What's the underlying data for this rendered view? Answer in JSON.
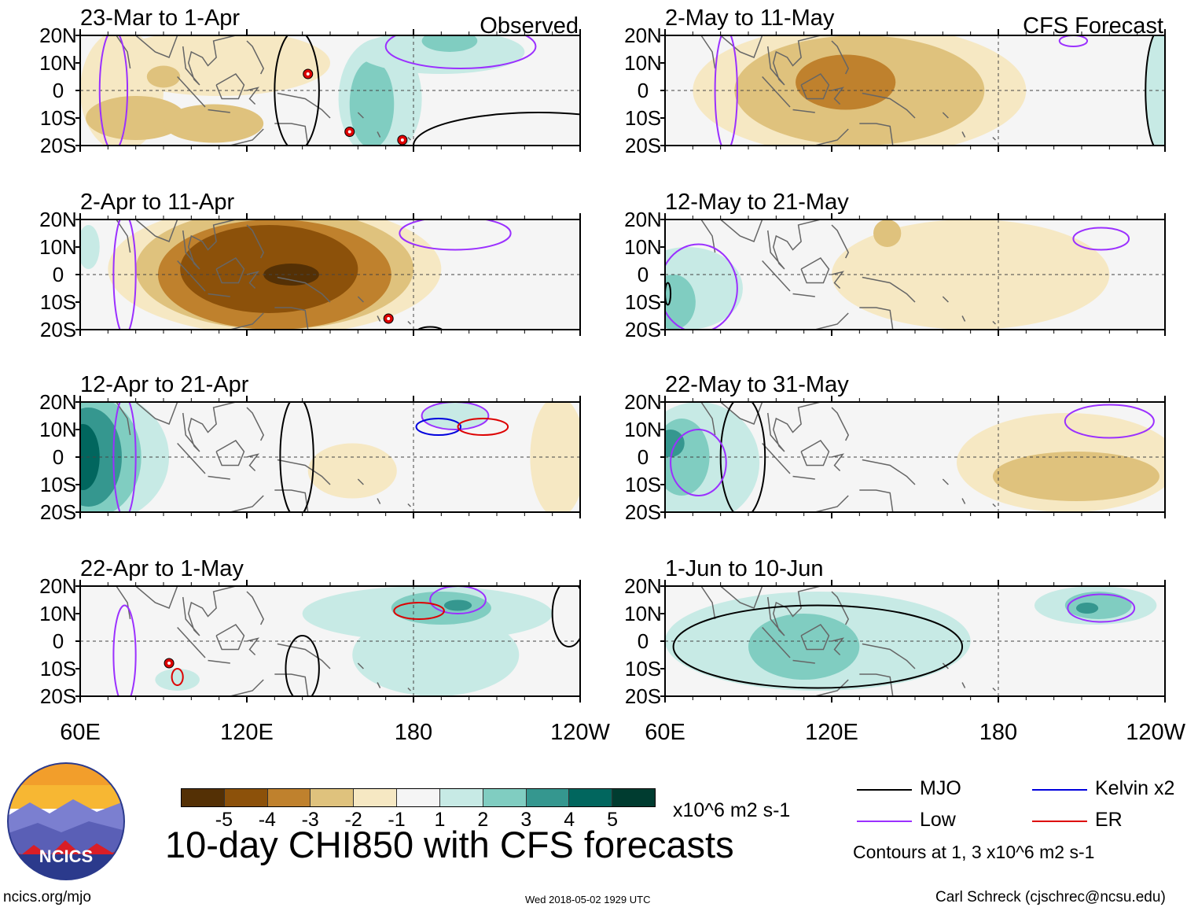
{
  "figure": {
    "title": "10-day CHI850 with CFS forecasts",
    "units": "x10^6 m2 s-1",
    "site": "ncics.org/mjo",
    "timestamp": "Wed 2018-05-02 1929 UTC",
    "credit": "Carl Schreck (cjschrec@ncsu.edu)",
    "logo_text": "NCICS"
  },
  "colors": {
    "scale": [
      "#543005",
      "#8c510a",
      "#bf812d",
      "#dfc27d",
      "#f6e8c3",
      "#f5f5f5",
      "#c7eae5",
      "#80cdc1",
      "#35978f",
      "#01665e",
      "#003c30"
    ],
    "mjo": "#000000",
    "low": "#9b30ff",
    "kelvin": "#0000dd",
    "er": "#dd0000",
    "coast": "#666666",
    "storm": "#dd0000"
  },
  "colorbar": {
    "ticks": [
      "-5",
      "-4",
      "-3",
      "-2",
      "-1",
      "1",
      "2",
      "3",
      "4",
      "5"
    ]
  },
  "legend": {
    "items": [
      {
        "label": "MJO",
        "color_key": "mjo"
      },
      {
        "label": "Kelvin x2",
        "color_key": "kelvin"
      },
      {
        "label": "Low",
        "color_key": "low"
      },
      {
        "label": "ER",
        "color_key": "er"
      }
    ],
    "contours_note": "Contours at 1, 3 x10^6 m2 s-1"
  },
  "chart_data": {
    "type": "heatmap",
    "variable": "CHI850 anomaly",
    "units": "x10^6 m2 s-1",
    "color_levels": [
      -5,
      -4,
      -3,
      -2,
      -1,
      1,
      2,
      3,
      4,
      5
    ],
    "contour_levels": [
      1,
      3
    ],
    "x_ticks": [
      "60E",
      "120E",
      "180",
      "120W"
    ],
    "x_range_deg_east": [
      60,
      240
    ],
    "y_ticks": [
      "20N",
      "10N",
      "0",
      "10S",
      "20S"
    ],
    "y_range_deg": [
      -20,
      20
    ],
    "column_labels": [
      "Observed",
      "CFS Forecast"
    ],
    "panels": [
      {
        "period": "23-Mar to 1-Apr",
        "column": 0,
        "row": 0,
        "tag": "Observed",
        "anomalies": [
          {
            "lon": 75,
            "lat": 0,
            "rlon": 15,
            "rlat": 22,
            "value": -1.5
          },
          {
            "lon": 80,
            "lat": -10,
            "rlon": 18,
            "rlat": 8,
            "value": -2
          },
          {
            "lon": 110,
            "lat": 10,
            "rlon": 40,
            "rlat": 12,
            "value": -1.5
          },
          {
            "lon": 90,
            "lat": 5,
            "rlon": 6,
            "rlat": 4,
            "value": -2
          },
          {
            "lon": 108,
            "lat": -12,
            "rlon": 18,
            "rlat": 7,
            "value": -2
          },
          {
            "lon": 168,
            "lat": -3,
            "rlon": 15,
            "rlat": 22,
            "value": 1.5
          },
          {
            "lon": 165,
            "lat": -5,
            "rlon": 8,
            "rlat": 16,
            "value": 2.5
          },
          {
            "lon": 190,
            "lat": 14,
            "rlon": 30,
            "rlat": 8,
            "value": 2
          },
          {
            "lon": 193,
            "lat": 18,
            "rlon": 10,
            "rlat": 4,
            "value": 3
          }
        ],
        "contours": [
          {
            "kind": "mjo",
            "lon": 138,
            "lat": 0,
            "rlon": 8,
            "rlat": 22
          },
          {
            "kind": "mjo",
            "lon": 225,
            "lat": -20,
            "rlon": 45,
            "rlat": 12
          },
          {
            "kind": "low",
            "lon": 197,
            "lat": 16,
            "rlon": 27,
            "rlat": 8
          },
          {
            "kind": "low",
            "lon": 72,
            "lat": 0,
            "rlon": 5,
            "rlat": 22
          }
        ],
        "storms": [
          {
            "lon": 142,
            "lat": 6
          },
          {
            "lon": 157,
            "lat": -15
          },
          {
            "lon": 176,
            "lat": -18
          }
        ]
      },
      {
        "period": "2-Apr to 11-Apr",
        "column": 0,
        "row": 1,
        "anomalies": [
          {
            "lon": 130,
            "lat": 2,
            "rlon": 60,
            "rlat": 24,
            "value": -1.5
          },
          {
            "lon": 130,
            "lat": 2,
            "rlon": 50,
            "rlat": 22,
            "value": -2.5
          },
          {
            "lon": 130,
            "lat": 0,
            "rlon": 42,
            "rlat": 20,
            "value": -3.5
          },
          {
            "lon": 128,
            "lat": 2,
            "rlon": 32,
            "rlat": 16,
            "value": -4.5
          },
          {
            "lon": 136,
            "lat": 0,
            "rlon": 10,
            "rlat": 4,
            "value": -5.5
          },
          {
            "lon": 63,
            "lat": 10,
            "rlon": 4,
            "rlat": 8,
            "value": 1.5
          }
        ],
        "contours": [
          {
            "kind": "low",
            "lon": 195,
            "lat": 15,
            "rlon": 20,
            "rlat": 6
          },
          {
            "kind": "low",
            "lon": 76,
            "lat": 0,
            "rlon": 4,
            "rlat": 22
          },
          {
            "kind": "mjo",
            "lon": 186,
            "lat": -21,
            "rlon": 5,
            "rlat": 2
          }
        ],
        "storms": [
          {
            "lon": 171,
            "lat": -16
          }
        ]
      },
      {
        "period": "12-Apr to 21-Apr",
        "column": 0,
        "row": 2,
        "anomalies": [
          {
            "lon": 66,
            "lat": 0,
            "rlon": 26,
            "rlat": 24,
            "value": 1.5
          },
          {
            "lon": 64,
            "lat": 0,
            "rlon": 18,
            "rlat": 22,
            "value": 2.5
          },
          {
            "lon": 63,
            "lat": 0,
            "rlon": 12,
            "rlat": 18,
            "value": 3.5
          },
          {
            "lon": 61,
            "lat": 0,
            "rlon": 6,
            "rlat": 12,
            "value": 4.5
          },
          {
            "lon": 158,
            "lat": -5,
            "rlon": 16,
            "rlat": 10,
            "value": -1.5
          },
          {
            "lon": 232,
            "lat": 0,
            "rlon": 10,
            "rlat": 22,
            "value": -1.5
          },
          {
            "lon": 195,
            "lat": 15,
            "rlon": 12,
            "rlat": 5,
            "value": 1.5
          }
        ],
        "contours": [
          {
            "kind": "mjo",
            "lon": 138,
            "lat": 0,
            "rlon": 6,
            "rlat": 22
          },
          {
            "kind": "low",
            "lon": 76,
            "lat": 0,
            "rlon": 4,
            "rlat": 22
          },
          {
            "kind": "low",
            "lon": 195,
            "lat": 15,
            "rlon": 12,
            "rlat": 5
          },
          {
            "kind": "kelvin",
            "lon": 189,
            "lat": 11,
            "rlon": 8,
            "rlat": 3
          },
          {
            "kind": "er",
            "lon": 205,
            "lat": 11,
            "rlon": 9,
            "rlat": 3
          }
        ],
        "storms": []
      },
      {
        "period": "22-Apr to 1-May",
        "column": 0,
        "row": 3,
        "anomalies": [
          {
            "lon": 185,
            "lat": 10,
            "rlon": 45,
            "rlat": 10,
            "value": 1.5
          },
          {
            "lon": 188,
            "lat": -5,
            "rlon": 30,
            "rlat": 15,
            "value": 1.5
          },
          {
            "lon": 190,
            "lat": 12,
            "rlon": 18,
            "rlat": 6,
            "value": 2.5
          },
          {
            "lon": 196,
            "lat": 13,
            "rlon": 5,
            "rlat": 2,
            "value": 3.5
          },
          {
            "lon": 95,
            "lat": -14,
            "rlon": 8,
            "rlat": 4,
            "value": 1.5
          }
        ],
        "contours": [
          {
            "kind": "mjo",
            "lon": 140,
            "lat": -10,
            "rlon": 6,
            "rlat": 12
          },
          {
            "kind": "mjo",
            "lon": 236,
            "lat": 10,
            "rlon": 6,
            "rlat": 12
          },
          {
            "kind": "low",
            "lon": 76,
            "lat": -5,
            "rlon": 4,
            "rlat": 18
          },
          {
            "kind": "low",
            "lon": 196,
            "lat": 15,
            "rlon": 10,
            "rlat": 5
          },
          {
            "kind": "er",
            "lon": 182,
            "lat": 11,
            "rlon": 9,
            "rlat": 3
          },
          {
            "kind": "er",
            "lon": 95,
            "lat": -13,
            "rlon": 2,
            "rlat": 3
          }
        ],
        "storms": [
          {
            "lon": 92,
            "lat": -8
          }
        ]
      },
      {
        "period": "2-May to 11-May",
        "column": 1,
        "row": 0,
        "tag": "CFS Forecast",
        "anomalies": [
          {
            "lon": 130,
            "lat": 0,
            "rlon": 60,
            "rlat": 24,
            "value": -1.5
          },
          {
            "lon": 130,
            "lat": 0,
            "rlon": 45,
            "rlat": 20,
            "value": -2.5
          },
          {
            "lon": 125,
            "lat": 3,
            "rlon": 18,
            "rlat": 10,
            "value": -3.5
          },
          {
            "lon": 238,
            "lat": 0,
            "rlon": 5,
            "rlat": 22,
            "value": 1.5
          }
        ],
        "contours": [
          {
            "kind": "low",
            "lon": 82,
            "lat": 0,
            "rlon": 4,
            "rlat": 22
          },
          {
            "kind": "low",
            "lon": 207,
            "lat": 18,
            "rlon": 5,
            "rlat": 2
          },
          {
            "kind": "mjo",
            "lon": 238,
            "lat": 0,
            "rlon": 5,
            "rlat": 22
          }
        ],
        "storms": []
      },
      {
        "period": "12-May to 21-May",
        "column": 1,
        "row": 1,
        "anomalies": [
          {
            "lon": 170,
            "lat": 0,
            "rlon": 50,
            "rlat": 20,
            "value": -1.5
          },
          {
            "lon": 140,
            "lat": 15,
            "rlon": 5,
            "rlat": 5,
            "value": -2.5
          },
          {
            "lon": 68,
            "lat": -5,
            "rlon": 20,
            "rlat": 15,
            "value": 1.5
          },
          {
            "lon": 63,
            "lat": -10,
            "rlon": 8,
            "rlat": 10,
            "value": 2.5
          }
        ],
        "contours": [
          {
            "kind": "low",
            "lon": 72,
            "lat": -5,
            "rlon": 14,
            "rlat": 16
          },
          {
            "kind": "low",
            "lon": 217,
            "lat": 13,
            "rlon": 10,
            "rlat": 4
          },
          {
            "kind": "mjo",
            "lon": 61,
            "lat": -7,
            "rlon": 1,
            "rlat": 4
          }
        ],
        "storms": []
      },
      {
        "period": "22-May to 31-May",
        "column": 1,
        "row": 2,
        "anomalies": [
          {
            "lon": 72,
            "lat": -2,
            "rlon": 22,
            "rlat": 22,
            "value": 1.5
          },
          {
            "lon": 66,
            "lat": 0,
            "rlon": 10,
            "rlat": 14,
            "value": 2.5
          },
          {
            "lon": 62,
            "lat": 5,
            "rlon": 5,
            "rlat": 5,
            "value": 3.5
          },
          {
            "lon": 205,
            "lat": -2,
            "rlon": 40,
            "rlat": 18,
            "value": -1.5
          },
          {
            "lon": 208,
            "lat": -7,
            "rlon": 30,
            "rlat": 9,
            "value": -2.5
          }
        ],
        "contours": [
          {
            "kind": "mjo",
            "lon": 88,
            "lat": 0,
            "rlon": 8,
            "rlat": 22
          },
          {
            "kind": "low",
            "lon": 72,
            "lat": -2,
            "rlon": 10,
            "rlat": 12
          },
          {
            "kind": "low",
            "lon": 220,
            "lat": 13,
            "rlon": 16,
            "rlat": 6
          }
        ],
        "storms": []
      },
      {
        "period": "1-Jun to 10-Jun",
        "column": 1,
        "row": 3,
        "anomalies": [
          {
            "lon": 115,
            "lat": 0,
            "rlon": 55,
            "rlat": 18,
            "value": 1.5
          },
          {
            "lon": 110,
            "lat": -2,
            "rlon": 20,
            "rlat": 12,
            "value": 2.5
          },
          {
            "lon": 215,
            "lat": 13,
            "rlon": 22,
            "rlat": 7,
            "value": 1.5
          },
          {
            "lon": 216,
            "lat": 13,
            "rlon": 12,
            "rlat": 5,
            "value": 2.5
          },
          {
            "lon": 212,
            "lat": 12,
            "rlon": 4,
            "rlat": 2,
            "value": 3.5
          }
        ],
        "contours": [
          {
            "kind": "mjo",
            "lon": 115,
            "lat": -2,
            "rlon": 52,
            "rlat": 15
          },
          {
            "kind": "low",
            "lon": 217,
            "lat": 12,
            "rlon": 12,
            "rlat": 5
          }
        ],
        "storms": []
      }
    ]
  }
}
